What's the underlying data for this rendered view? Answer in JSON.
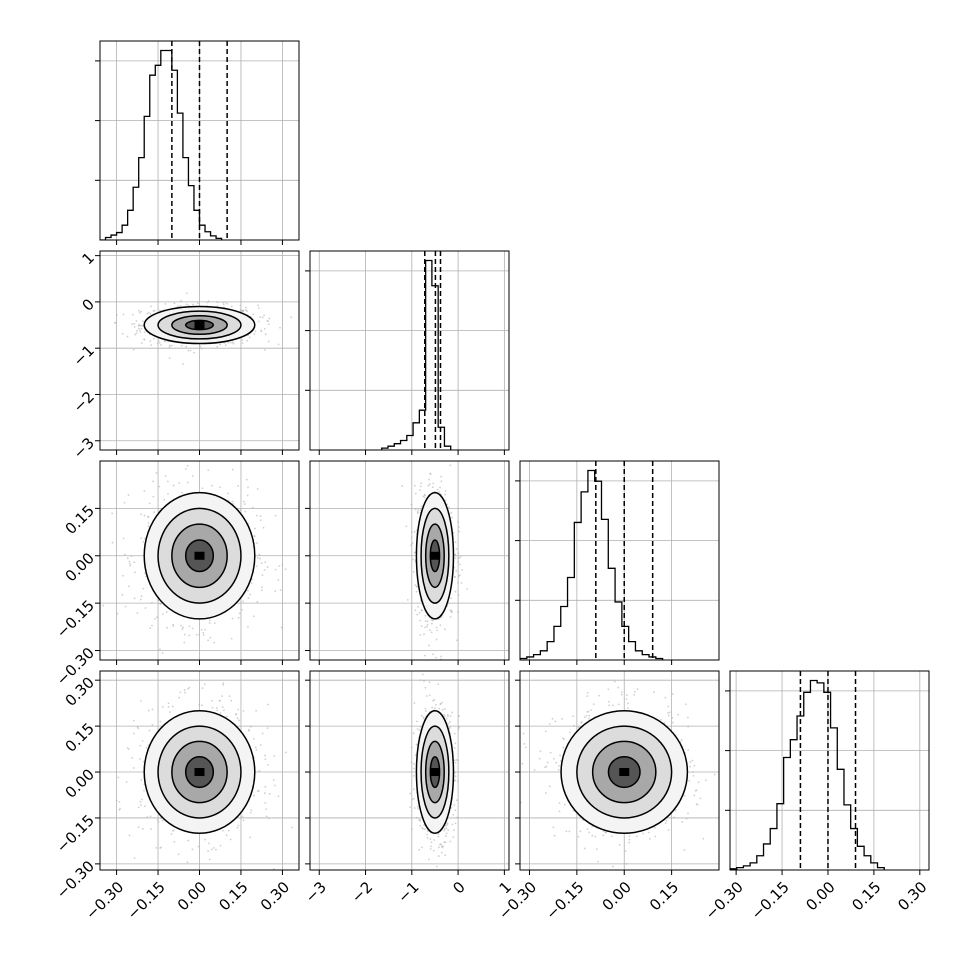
{
  "chart_data": {
    "type": "corner",
    "parameters": [
      {
        "id": "p1",
        "range": [
          -0.36,
          0.36
        ],
        "ticks": [
          -0.3,
          -0.15,
          0.0,
          0.15,
          0.3
        ],
        "tick_labels": [
          "−0.30",
          "−0.15",
          "0.00",
          "0.15",
          "0.30"
        ],
        "quantiles": [
          -0.1,
          0.0,
          0.1
        ],
        "hist": {
          "start": -0.36,
          "width": 0.02,
          "values": [
            0,
            1.5,
            3,
            4.5,
            9,
            18,
            32,
            50,
            75,
            100,
            106,
            115,
            115,
            103,
            77,
            50,
            33,
            18,
            9,
            5,
            2.5,
            1
          ]
        }
      },
      {
        "id": "p2",
        "range": [
          -3.2,
          1.1
        ],
        "ticks": [
          -3,
          -2,
          -1,
          0,
          1
        ],
        "tick_labels": [
          "−3",
          "−2",
          "−1",
          "0",
          "1"
        ],
        "quantiles": [
          -0.72,
          -0.49,
          -0.38
        ],
        "hist": {
          "start": -1.65,
          "width": 0.1355,
          "values": [
            0.3,
            0.6,
            1.0,
            1.5,
            2.3,
            4.3,
            6.3,
            30,
            26,
            3.6,
            0.6
          ]
        }
      },
      {
        "id": "p3",
        "range": [
          -0.33,
          0.3
        ],
        "ticks": [
          -0.3,
          -0.15,
          0.0,
          0.15
        ],
        "tick_labels": [
          "−0.30",
          "−0.15",
          "0.00",
          "0.15"
        ],
        "quantiles": [
          -0.09,
          0.0,
          0.09
        ],
        "hist": {
          "start": -0.33,
          "width": 0.0215,
          "values": [
            1,
            2,
            3.5,
            6,
            12,
            22,
            35,
            54,
            90,
            110,
            124,
            117,
            92,
            60,
            38,
            22,
            12,
            6,
            3.5,
            2,
            1
          ]
        }
      },
      {
        "id": "p4",
        "range": [
          -0.32,
          0.33
        ],
        "ticks": [
          -0.3,
          -0.15,
          0.0,
          0.15,
          0.3
        ],
        "tick_labels": [
          "−0.30",
          "−0.15",
          "0.00",
          "0.15",
          "0.30"
        ],
        "quantiles": [
          -0.09,
          0.0,
          0.09
        ],
        "hist": {
          "start": -0.32,
          "width": 0.0219,
          "values": [
            1,
            2,
            3.5,
            6,
            12,
            22,
            35,
            56,
            95,
            110,
            130,
            150,
            160,
            158,
            150,
            120,
            85,
            55,
            35,
            20,
            12,
            6,
            2
          ]
        }
      }
    ],
    "correlations": {
      "p1_p2": {
        "center": [
          0.0,
          -0.5
        ],
        "sigma": [
          0.1,
          0.2
        ]
      },
      "p1_p3": {
        "center": [
          0.0,
          0.0
        ],
        "sigma": [
          0.1,
          0.1
        ]
      },
      "p2_p3": {
        "center": [
          -0.5,
          0.0
        ],
        "sigma": [
          0.2,
          0.1
        ]
      },
      "p1_p4": {
        "center": [
          0.0,
          0.0
        ],
        "sigma": [
          0.1,
          0.1
        ]
      },
      "p2_p4": {
        "center": [
          -0.5,
          0.0
        ],
        "sigma": [
          0.2,
          0.1
        ]
      },
      "p3_p4": {
        "center": [
          0.0,
          0.0
        ],
        "sigma": [
          0.1,
          0.1
        ]
      }
    },
    "contour_levels_sigma": [
      0.5,
      1.0,
      1.5,
      2.0
    ],
    "scatter_color": "#b0b0b0",
    "density_color": "#000000",
    "grid": true
  }
}
